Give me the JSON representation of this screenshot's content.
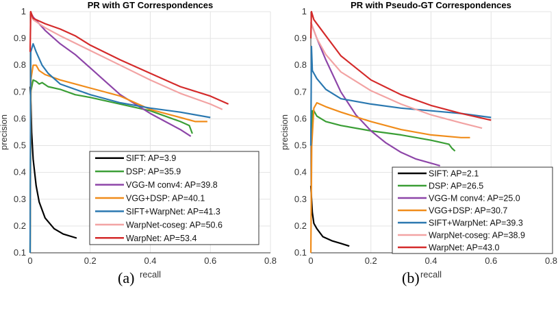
{
  "chart_data": [
    {
      "type": "line",
      "title": "PR with GT Correspondences",
      "xlabel": "recall",
      "ylabel": "precision",
      "xlim": [
        0,
        0.8
      ],
      "ylim": [
        0.1,
        1
      ],
      "xticks": [
        "0",
        "0.2",
        "0.4",
        "0.6",
        "0.8"
      ],
      "yticks": [
        "0.1",
        "0.2",
        "0.3",
        "0.4",
        "0.5",
        "0.6",
        "0.7",
        "0.8",
        "0.9",
        "1"
      ],
      "grid": true,
      "legend_position": "bottom-right",
      "caption": "(a)",
      "series": [
        {
          "name": "SIFT: AP=3.9",
          "color": "#000000",
          "points": [
            [
              0,
              0.72
            ],
            [
              0.003,
              0.65
            ],
            [
              0.005,
              0.55
            ],
            [
              0.01,
              0.45
            ],
            [
              0.02,
              0.35
            ],
            [
              0.03,
              0.29
            ],
            [
              0.05,
              0.23
            ],
            [
              0.08,
              0.19
            ],
            [
              0.11,
              0.17
            ],
            [
              0.155,
              0.155
            ]
          ]
        },
        {
          "name": "DSP: AP=35.9",
          "color": "#3a9e35",
          "points": [
            [
              0,
              0.1
            ],
            [
              0.002,
              0.7
            ],
            [
              0.01,
              0.745
            ],
            [
              0.02,
              0.74
            ],
            [
              0.03,
              0.73
            ],
            [
              0.04,
              0.735
            ],
            [
              0.06,
              0.72
            ],
            [
              0.1,
              0.71
            ],
            [
              0.15,
              0.69
            ],
            [
              0.2,
              0.68
            ],
            [
              0.3,
              0.655
            ],
            [
              0.4,
              0.63
            ],
            [
              0.5,
              0.59
            ],
            [
              0.53,
              0.575
            ],
            [
              0.54,
              0.545
            ]
          ]
        },
        {
          "name": "VGG-M conv4: AP=39.8",
          "color": "#8d45a8",
          "points": [
            [
              0,
              1.0
            ],
            [
              0.01,
              0.98
            ],
            [
              0.05,
              0.93
            ],
            [
              0.1,
              0.88
            ],
            [
              0.15,
              0.84
            ],
            [
              0.2,
              0.79
            ],
            [
              0.25,
              0.74
            ],
            [
              0.3,
              0.69
            ],
            [
              0.35,
              0.655
            ],
            [
              0.4,
              0.62
            ],
            [
              0.45,
              0.59
            ],
            [
              0.5,
              0.56
            ],
            [
              0.535,
              0.535
            ]
          ]
        },
        {
          "name": "VGG+DSP: AP=40.1",
          "color": "#f08c1a",
          "points": [
            [
              0,
              0.1
            ],
            [
              0.003,
              0.75
            ],
            [
              0.01,
              0.8
            ],
            [
              0.02,
              0.8
            ],
            [
              0.03,
              0.78
            ],
            [
              0.05,
              0.765
            ],
            [
              0.1,
              0.745
            ],
            [
              0.15,
              0.73
            ],
            [
              0.2,
              0.715
            ],
            [
              0.3,
              0.685
            ],
            [
              0.4,
              0.635
            ],
            [
              0.5,
              0.605
            ],
            [
              0.55,
              0.59
            ],
            [
              0.59,
              0.59
            ]
          ]
        },
        {
          "name": "SIFT+WarpNet: AP=41.3",
          "color": "#2a78b0",
          "points": [
            [
              0,
              0.1
            ],
            [
              0.002,
              0.85
            ],
            [
              0.01,
              0.88
            ],
            [
              0.02,
              0.85
            ],
            [
              0.04,
              0.8
            ],
            [
              0.06,
              0.77
            ],
            [
              0.1,
              0.73
            ],
            [
              0.15,
              0.71
            ],
            [
              0.2,
              0.69
            ],
            [
              0.3,
              0.66
            ],
            [
              0.4,
              0.64
            ],
            [
              0.5,
              0.625
            ],
            [
              0.6,
              0.605
            ]
          ]
        },
        {
          "name": "WarpNet-coseg: AP=50.6",
          "color": "#f2a3a3",
          "points": [
            [
              0,
              1.0
            ],
            [
              0.01,
              0.97
            ],
            [
              0.05,
              0.94
            ],
            [
              0.1,
              0.91
            ],
            [
              0.2,
              0.855
            ],
            [
              0.3,
              0.8
            ],
            [
              0.4,
              0.745
            ],
            [
              0.5,
              0.695
            ],
            [
              0.6,
              0.655
            ],
            [
              0.64,
              0.635
            ]
          ]
        },
        {
          "name": "WarpNet: AP=53.4",
          "color": "#d42a2a",
          "points": [
            [
              0,
              0.85
            ],
            [
              0.002,
              1.0
            ],
            [
              0.01,
              0.975
            ],
            [
              0.05,
              0.955
            ],
            [
              0.1,
              0.935
            ],
            [
              0.15,
              0.91
            ],
            [
              0.2,
              0.875
            ],
            [
              0.3,
              0.82
            ],
            [
              0.4,
              0.77
            ],
            [
              0.5,
              0.72
            ],
            [
              0.6,
              0.685
            ],
            [
              0.66,
              0.655
            ]
          ]
        }
      ]
    },
    {
      "type": "line",
      "title": "PR with Pseudo-GT Correspondences",
      "xlabel": "recall",
      "ylabel": "precision",
      "xlim": [
        0,
        0.8
      ],
      "ylim": [
        0.1,
        1
      ],
      "xticks": [
        "0",
        "0.2",
        "0.4",
        "0.6",
        "0.8"
      ],
      "yticks": [
        "0.1",
        "0.2",
        "0.3",
        "0.4",
        "0.5",
        "0.6",
        "0.7",
        "0.8",
        "0.9",
        "1"
      ],
      "grid": true,
      "legend_position": "bottom-right",
      "caption": "(b)",
      "series": [
        {
          "name": "SIFT: AP=2.1",
          "color": "#000000",
          "points": [
            [
              0,
              0.35
            ],
            [
              0.005,
              0.25
            ],
            [
              0.01,
              0.21
            ],
            [
              0.02,
              0.19
            ],
            [
              0.04,
              0.16
            ],
            [
              0.07,
              0.145
            ],
            [
              0.1,
              0.135
            ],
            [
              0.128,
              0.125
            ]
          ]
        },
        {
          "name": "DSP: AP=26.5",
          "color": "#3a9e35",
          "points": [
            [
              0,
              0.5
            ],
            [
              0.005,
              0.63
            ],
            [
              0.01,
              0.63
            ],
            [
              0.02,
              0.61
            ],
            [
              0.05,
              0.59
            ],
            [
              0.1,
              0.575
            ],
            [
              0.2,
              0.555
            ],
            [
              0.3,
              0.54
            ],
            [
              0.4,
              0.52
            ],
            [
              0.46,
              0.505
            ],
            [
              0.47,
              0.49
            ],
            [
              0.48,
              0.48
            ]
          ]
        },
        {
          "name": "VGG-M conv4: AP=25.0",
          "color": "#8d45a8",
          "points": [
            [
              0,
              0.96
            ],
            [
              0.02,
              0.9
            ],
            [
              0.05,
              0.82
            ],
            [
              0.1,
              0.7
            ],
            [
              0.15,
              0.615
            ],
            [
              0.2,
              0.555
            ],
            [
              0.25,
              0.51
            ],
            [
              0.3,
              0.475
            ],
            [
              0.35,
              0.45
            ],
            [
              0.43,
              0.425
            ]
          ]
        },
        {
          "name": "VGG+DSP: AP=30.7",
          "color": "#f08c1a",
          "points": [
            [
              0,
              0.1
            ],
            [
              0.003,
              0.5
            ],
            [
              0.01,
              0.64
            ],
            [
              0.02,
              0.66
            ],
            [
              0.05,
              0.645
            ],
            [
              0.1,
              0.625
            ],
            [
              0.2,
              0.59
            ],
            [
              0.3,
              0.56
            ],
            [
              0.4,
              0.54
            ],
            [
              0.5,
              0.53
            ],
            [
              0.53,
              0.53
            ]
          ]
        },
        {
          "name": "SIFT+WarpNet: AP=39.3",
          "color": "#2a78b0",
          "points": [
            [
              0,
              0.5
            ],
            [
              0.002,
              0.87
            ],
            [
              0.005,
              0.78
            ],
            [
              0.02,
              0.75
            ],
            [
              0.05,
              0.71
            ],
            [
              0.1,
              0.675
            ],
            [
              0.2,
              0.655
            ],
            [
              0.3,
              0.64
            ],
            [
              0.4,
              0.63
            ],
            [
              0.5,
              0.62
            ],
            [
              0.6,
              0.605
            ]
          ]
        },
        {
          "name": "WarpNet-coseg: AP=38.9",
          "color": "#f2a3a3",
          "points": [
            [
              0,
              0.96
            ],
            [
              0.02,
              0.9
            ],
            [
              0.05,
              0.84
            ],
            [
              0.1,
              0.775
            ],
            [
              0.2,
              0.705
            ],
            [
              0.3,
              0.655
            ],
            [
              0.4,
              0.615
            ],
            [
              0.5,
              0.585
            ],
            [
              0.57,
              0.565
            ]
          ]
        },
        {
          "name": "WarpNet: AP=43.0",
          "color": "#d42a2a",
          "points": [
            [
              0,
              0.9
            ],
            [
              0.002,
              1.0
            ],
            [
              0.01,
              0.97
            ],
            [
              0.05,
              0.91
            ],
            [
              0.1,
              0.835
            ],
            [
              0.2,
              0.745
            ],
            [
              0.3,
              0.69
            ],
            [
              0.4,
              0.65
            ],
            [
              0.5,
              0.62
            ],
            [
              0.6,
              0.595
            ]
          ]
        }
      ]
    }
  ]
}
